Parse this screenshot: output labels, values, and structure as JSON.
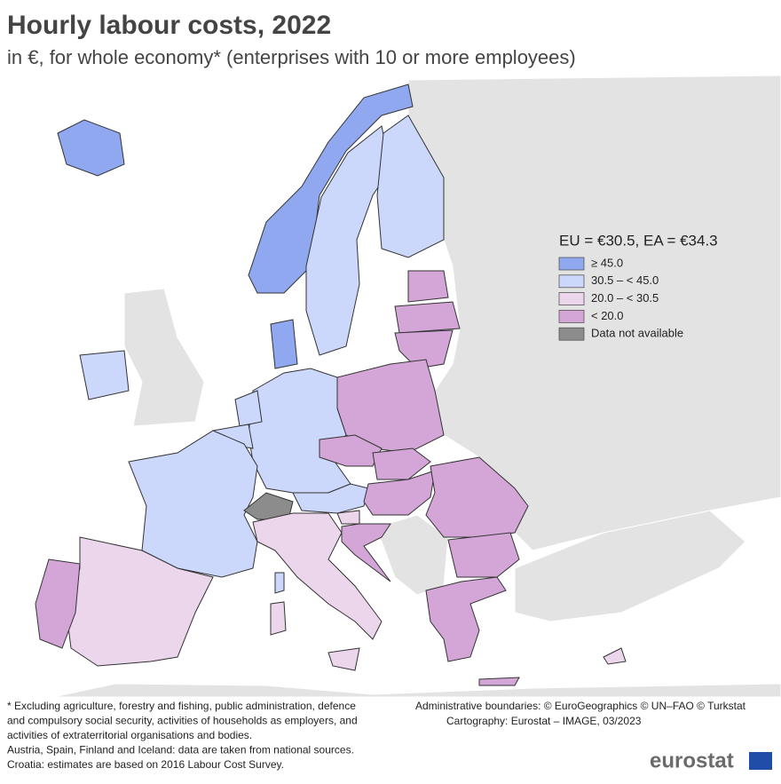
{
  "header": {
    "title": "Hourly labour costs, 2022",
    "subtitle": "in €, for whole economy* (enterprises with 10 or more employees)"
  },
  "legend": {
    "title": "EU = €30.5, EA = €34.3",
    "items": [
      {
        "label": "≥ 45.0",
        "color": "#8fa8f0"
      },
      {
        "label": "30.5 – < 45.0",
        "color": "#ccd8fb"
      },
      {
        "label": "20.0 – < 30.5",
        "color": "#ecd6ec"
      },
      {
        "label": "< 20.0",
        "color": "#d4a6d8"
      },
      {
        "label": "Data not available",
        "color": "#8c8c8c"
      }
    ]
  },
  "notes": [
    "* Excluding agriculture, forestry and fishing, public administration, defence",
    "and compulsory social security, activities of households as employers, and",
    "activities of extraterritorial organisations and bodies.",
    "Austria, Spain, Finland and Iceland: data are taken from national sources.",
    "Croatia: estimates are based on 2016 Labour Cost Survey."
  ],
  "credits": [
    "Administrative boundaries: © EuroGeographics © UN–FAO © Turkstat",
    "Cartography: Eurostat – IMAGE, 03/2023"
  ],
  "logo": "eurostat"
}
